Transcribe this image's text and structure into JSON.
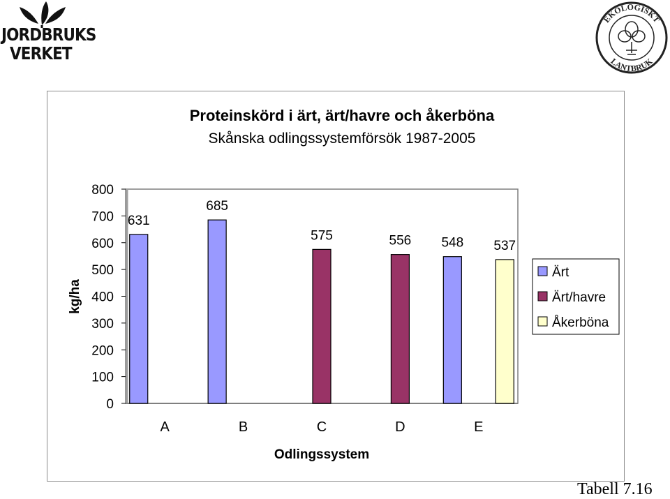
{
  "logos": {
    "left_lines": [
      "JORDBRUKS",
      "VERKET"
    ],
    "right_text_top": "EKOLOGISKT",
    "right_text_bottom": "LANTBRUK"
  },
  "footnote": "Tabell 7.16",
  "colors": {
    "art": "#9999FF",
    "art_havre": "#993366",
    "akerbona": "#FFFFCC",
    "frame": "#8a8a8a"
  },
  "chart_data": {
    "type": "bar",
    "title": "Proteinskörd i ärt, ärt/havre och åkerböna",
    "subtitle": "Skånska odlingssystemförsök 1987-2005",
    "xlabel": "Odlingssystem",
    "ylabel": "kg/ha",
    "ylim": [
      0,
      800
    ],
    "yticks": [
      0,
      100,
      200,
      300,
      400,
      500,
      600,
      700,
      800
    ],
    "categories": [
      "A",
      "B",
      "C",
      "D",
      "E"
    ],
    "series": [
      {
        "name": "Ärt",
        "color": "#9999FF",
        "values": [
          631,
          685,
          null,
          null,
          548
        ]
      },
      {
        "name": "Ärt/havre",
        "color": "#993366",
        "values": [
          null,
          null,
          575,
          556,
          null
        ]
      },
      {
        "name": "Åkerböna",
        "color": "#FFFFCC",
        "values": [
          null,
          null,
          null,
          null,
          537
        ]
      }
    ],
    "data_labels": true,
    "grid": false,
    "legend": "right"
  }
}
